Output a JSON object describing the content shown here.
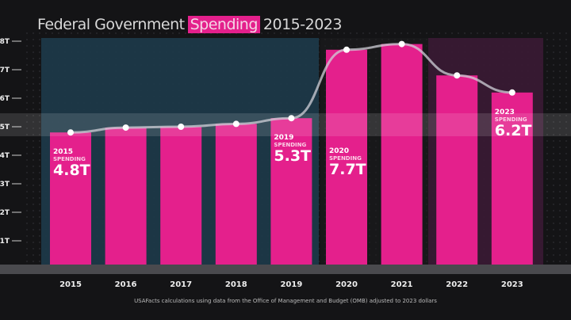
{
  "chart_data": {
    "type": "bar",
    "title_parts": [
      "Federal Government",
      "Spending",
      "2015-2023"
    ],
    "categories": [
      "2015",
      "2016",
      "2017",
      "2018",
      "2019",
      "2020",
      "2021",
      "2022",
      "2023"
    ],
    "values": [
      4.8,
      4.97,
      5.0,
      5.1,
      5.3,
      7.7,
      7.9,
      6.8,
      6.2
    ],
    "ylim": [
      0,
      8
    ],
    "yticks": [
      "1T",
      "2T",
      "3T",
      "4T",
      "5T",
      "6T",
      "7T",
      "8T"
    ],
    "annotations": [
      {
        "index": 0,
        "year": "2015",
        "label": "SPENDING",
        "value": "4.8T"
      },
      {
        "index": 4,
        "year": "2019",
        "label": "SPENDING",
        "value": "5.3T"
      },
      {
        "index": 5,
        "year": "2020",
        "label": "SPENDING",
        "value": "7.7T"
      },
      {
        "index": 8,
        "year": "2023",
        "label": "SPENDING",
        "value": "6.2T"
      }
    ],
    "source_note": "USAFacts calculations using data from the Office of Management and Budget (OMB) adjusted to 2023 dollars",
    "colors": {
      "bar": "#e4208c",
      "background": "#141416",
      "highlight_blue": "#1d3a4a",
      "highlight_pink": "#3a1a34",
      "line": "#d0d0d8"
    }
  }
}
